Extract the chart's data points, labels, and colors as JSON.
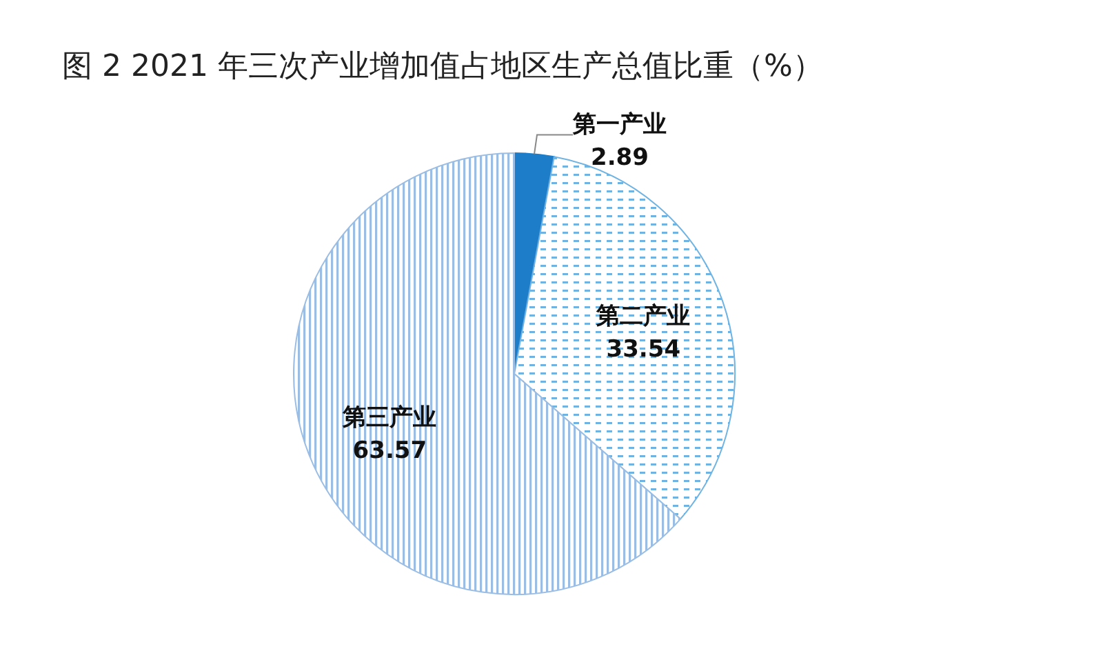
{
  "chart_data": {
    "type": "pie",
    "title": "图 2 2021 年三次产业增加值占地区生产总值比重（%）",
    "categories": [
      "第一产业",
      "第二产业",
      "第三产业"
    ],
    "values": [
      2.89,
      33.54,
      63.57
    ],
    "colors": [
      "#1e7dc8",
      "#6fb3e3",
      "#9bbde3"
    ],
    "data_labels": true
  }
}
